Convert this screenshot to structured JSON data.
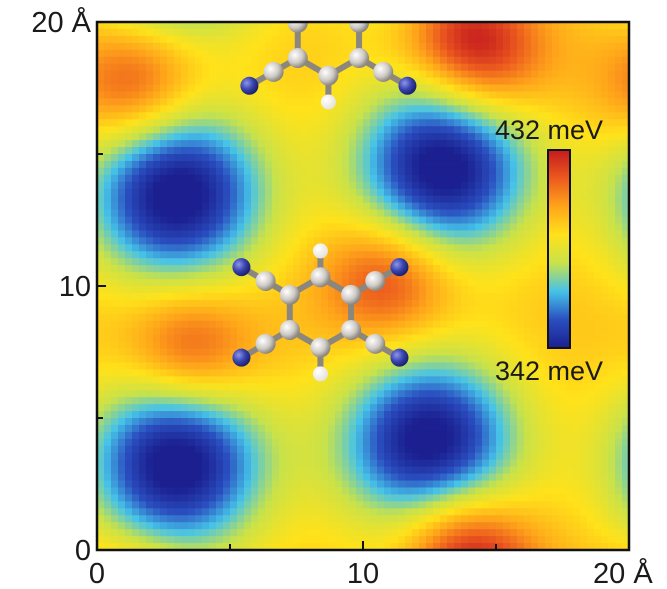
{
  "chart_data": {
    "type": "heatmap",
    "title": "",
    "xlabel": "",
    "ylabel": "",
    "xlim": [
      0,
      20
    ],
    "ylim": [
      0,
      20
    ],
    "x_unit": "Å",
    "y_unit": "Å",
    "x_ticks": [
      {
        "value": 0,
        "label": "0"
      },
      {
        "value": 10,
        "label": "10"
      },
      {
        "value": 20,
        "label": "20 Å"
      }
    ],
    "y_ticks": [
      {
        "value": 0,
        "label": "0"
      },
      {
        "value": 10,
        "label": "10"
      },
      {
        "value": 20,
        "label": "20 Å"
      }
    ],
    "grid": false,
    "colorbar": {
      "min": 342,
      "max": 432,
      "unit": "meV",
      "min_label": "342 meV",
      "max_label": "432 meV",
      "colormap": [
        "#1b1f8f",
        "#2a4fc0",
        "#46c3e8",
        "#c8e24a",
        "#ffe21a",
        "#ffa51a",
        "#ec5a1e",
        "#c41a1e"
      ]
    },
    "minima": [
      {
        "x": 3.0,
        "y": 13.5,
        "value": 342
      },
      {
        "x": 13.0,
        "y": 14.5,
        "value": 342
      },
      {
        "x": 3.0,
        "y": 3.3,
        "value": 342
      },
      {
        "x": 12.5,
        "y": 4.0,
        "value": 342
      }
    ],
    "maxima": [
      {
        "x": 1.5,
        "y": 17.5,
        "value": 432
      },
      {
        "x": 11.0,
        "y": 10.3,
        "value": 432
      },
      {
        "x": 3.5,
        "y": 7.5,
        "value": 432
      },
      {
        "x": 14.5,
        "y": 18.5,
        "value": 432
      },
      {
        "x": 13.5,
        "y": 0.5,
        "value": 432
      }
    ],
    "molecules": [
      {
        "name": "TCNB",
        "center": {
          "x": 8.4,
          "y": 9.0
        }
      },
      {
        "name": "TCNB",
        "center": {
          "x": 8.7,
          "y": 19.3
        }
      }
    ]
  }
}
